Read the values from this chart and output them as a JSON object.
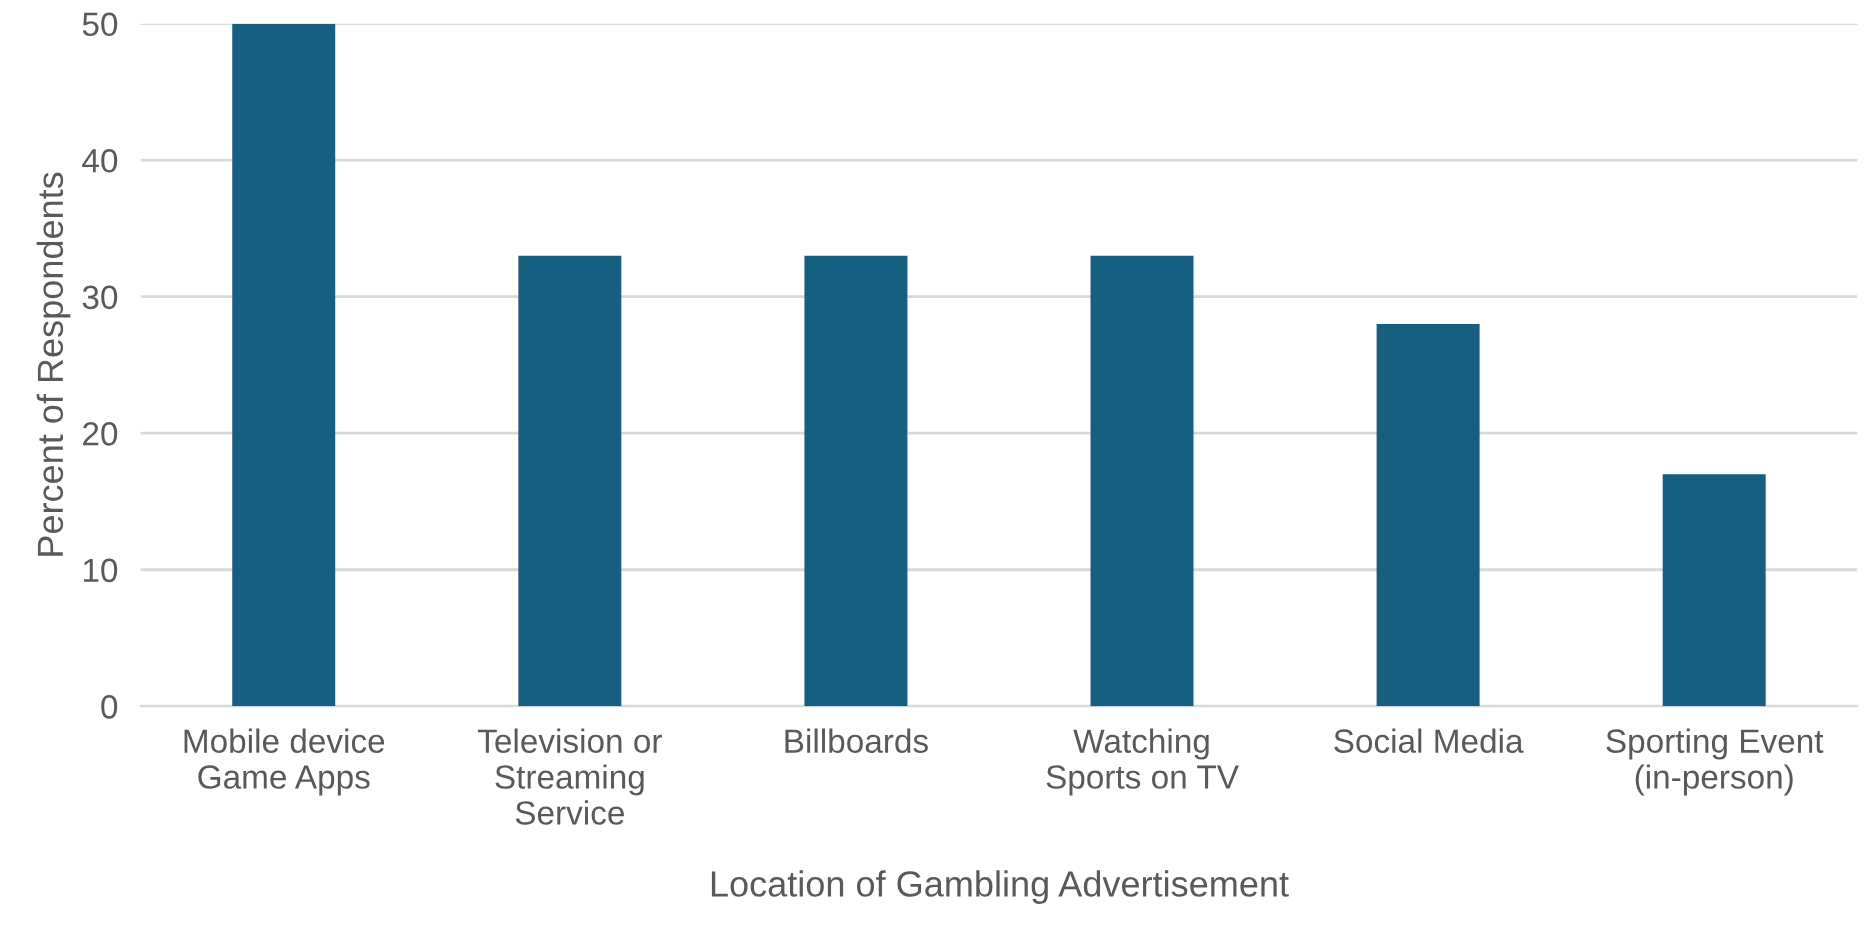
{
  "chart_data": {
    "type": "bar",
    "xlabel": "Location of Gambling Advertisement",
    "ylabel": "Percent of Respondents",
    "categories": [
      "Mobile device\nGame Apps",
      "Television or\nStreaming\nService",
      "Billboards",
      "Watching\nSports on TV",
      "Social Media",
      "Sporting Event\n(in-person)"
    ],
    "values": [
      50,
      33,
      33,
      33,
      28,
      17
    ],
    "color": "#165f80",
    "ylim": [
      0,
      50
    ],
    "yticks": [
      0,
      10,
      20,
      30,
      40,
      50
    ],
    "grid": "y"
  }
}
